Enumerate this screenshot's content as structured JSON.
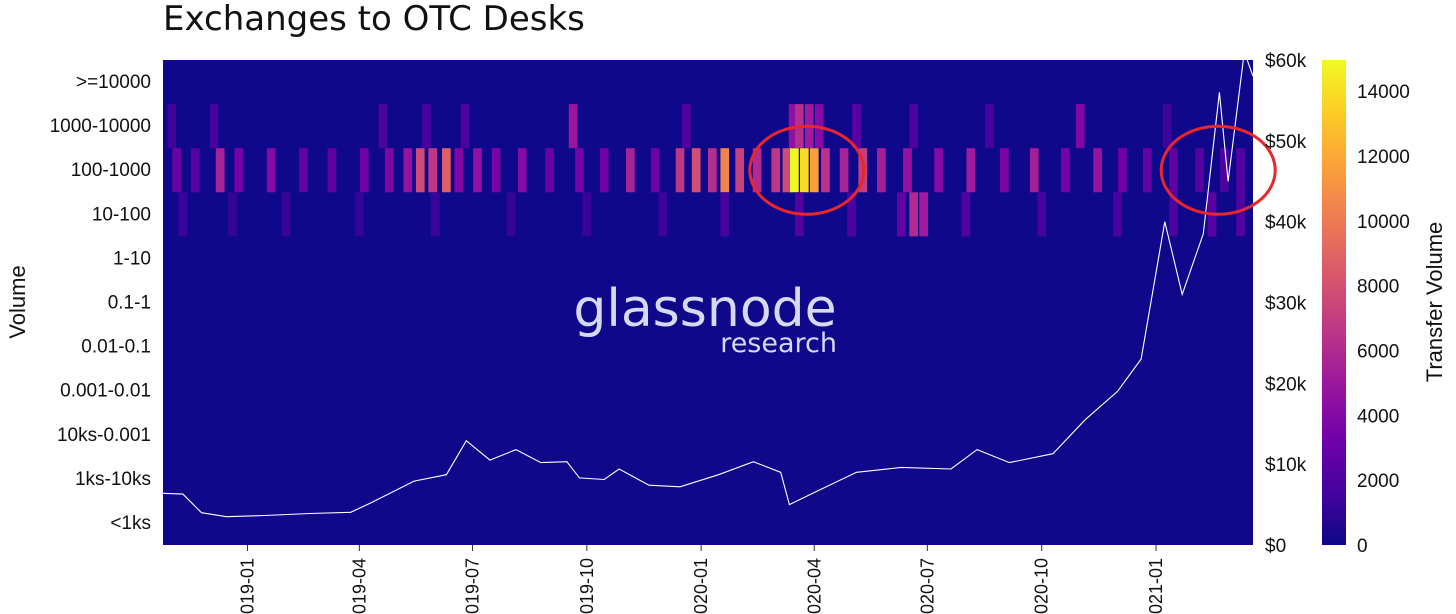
{
  "chart_data": {
    "type": "heatmap",
    "title": "Exchanges to OTC Desks",
    "ylabel": "Volume",
    "y2label": "",
    "colorbar_label": "Transfer Volume",
    "y_categories": [
      "<1ks",
      "1ks-10ks",
      "10ks-0.001",
      "0.001-0.01",
      "0.01-0.1",
      "0.1-1",
      "1-10",
      "10-100",
      "100-1000",
      "1000-10000",
      ">=10000"
    ],
    "x_ticks": [
      "2019-01",
      "2019-04",
      "2019-07",
      "2019-10",
      "2020-01",
      "2020-04",
      "2020-07",
      "2020-10",
      "2021-01"
    ],
    "x_range": [
      "2018-10-25",
      "2021-03-20"
    ],
    "y2_ticks": [
      "$0",
      "$10k",
      "$20k",
      "$30k",
      "$40k",
      "$50k",
      "$60k"
    ],
    "y2_range": [
      0,
      60000
    ],
    "colorbar_ticks": [
      "0",
      "2000",
      "4000",
      "6000",
      "8000",
      "10000",
      "12000",
      "14000"
    ],
    "colorbar_range": [
      0,
      14000
    ],
    "colorscale": [
      "#0d0887",
      "#46039f",
      "#7201a8",
      "#9c179e",
      "#bd3786",
      "#d8576b",
      "#ed7953",
      "#fb9f3a",
      "#fdca26",
      "#f0f921"
    ],
    "rows": {
      "100-1000": [
        {
          "date": "2018-11-05",
          "value": 2800
        },
        {
          "date": "2018-11-20",
          "value": 2200
        },
        {
          "date": "2018-12-10",
          "value": 5200
        },
        {
          "date": "2018-12-25",
          "value": 3200
        },
        {
          "date": "2019-01-20",
          "value": 3800
        },
        {
          "date": "2019-02-15",
          "value": 2600
        },
        {
          "date": "2019-03-10",
          "value": 2400
        },
        {
          "date": "2019-04-05",
          "value": 3000
        },
        {
          "date": "2019-04-25",
          "value": 3600
        },
        {
          "date": "2019-05-10",
          "value": 4400
        },
        {
          "date": "2019-05-20",
          "value": 7200
        },
        {
          "date": "2019-05-30",
          "value": 6200
        },
        {
          "date": "2019-06-10",
          "value": 8200
        },
        {
          "date": "2019-06-20",
          "value": 3600
        },
        {
          "date": "2019-07-05",
          "value": 4200
        },
        {
          "date": "2019-07-20",
          "value": 3400
        },
        {
          "date": "2019-08-10",
          "value": 3800
        },
        {
          "date": "2019-09-01",
          "value": 2800
        },
        {
          "date": "2019-09-25",
          "value": 3200
        },
        {
          "date": "2019-10-15",
          "value": 3000
        },
        {
          "date": "2019-11-05",
          "value": 5200
        },
        {
          "date": "2019-11-25",
          "value": 3000
        },
        {
          "date": "2019-12-15",
          "value": 6200
        },
        {
          "date": "2019-12-28",
          "value": 7400
        },
        {
          "date": "2020-01-10",
          "value": 5800
        },
        {
          "date": "2020-01-20",
          "value": 9800
        },
        {
          "date": "2020-02-01",
          "value": 6800
        },
        {
          "date": "2020-02-15",
          "value": 5600
        },
        {
          "date": "2020-03-01",
          "value": 6200
        },
        {
          "date": "2020-03-10",
          "value": 7200
        },
        {
          "date": "2020-03-16",
          "value": 14000
        },
        {
          "date": "2020-03-24",
          "value": 13000
        },
        {
          "date": "2020-04-01",
          "value": 10800
        },
        {
          "date": "2020-04-10",
          "value": 6000
        },
        {
          "date": "2020-04-25",
          "value": 5200
        },
        {
          "date": "2020-05-10",
          "value": 6600
        },
        {
          "date": "2020-05-25",
          "value": 5000
        },
        {
          "date": "2020-06-15",
          "value": 4400
        },
        {
          "date": "2020-07-10",
          "value": 3800
        },
        {
          "date": "2020-08-05",
          "value": 4800
        },
        {
          "date": "2020-09-01",
          "value": 3400
        },
        {
          "date": "2020-09-25",
          "value": 5000
        },
        {
          "date": "2020-10-20",
          "value": 3200
        },
        {
          "date": "2020-11-15",
          "value": 4400
        },
        {
          "date": "2020-12-05",
          "value": 3000
        },
        {
          "date": "2020-12-25",
          "value": 2600
        },
        {
          "date": "2021-01-15",
          "value": 2400
        },
        {
          "date": "2021-02-05",
          "value": 2200
        },
        {
          "date": "2021-02-25",
          "value": 1800
        },
        {
          "date": "2021-03-10",
          "value": 2000
        }
      ],
      "10-100": [
        {
          "date": "2018-11-10",
          "value": 1200
        },
        {
          "date": "2018-12-20",
          "value": 1000
        },
        {
          "date": "2019-02-01",
          "value": 1200
        },
        {
          "date": "2019-04-01",
          "value": 1100
        },
        {
          "date": "2019-06-01",
          "value": 1200
        },
        {
          "date": "2019-08-01",
          "value": 1100
        },
        {
          "date": "2019-10-01",
          "value": 1200
        },
        {
          "date": "2019-12-01",
          "value": 1300
        },
        {
          "date": "2020-01-20",
          "value": 1600
        },
        {
          "date": "2020-03-20",
          "value": 2000
        },
        {
          "date": "2020-05-01",
          "value": 1800
        },
        {
          "date": "2020-06-10",
          "value": 2600
        },
        {
          "date": "2020-06-20",
          "value": 5600
        },
        {
          "date": "2020-06-28",
          "value": 4800
        },
        {
          "date": "2020-08-01",
          "value": 2000
        },
        {
          "date": "2020-10-01",
          "value": 1600
        },
        {
          "date": "2020-12-01",
          "value": 1700
        },
        {
          "date": "2021-01-15",
          "value": 1800
        },
        {
          "date": "2021-02-15",
          "value": 2200
        },
        {
          "date": "2021-03-10",
          "value": 2000
        }
      ],
      "1000-10000": [
        {
          "date": "2018-11-01",
          "value": 1400
        },
        {
          "date": "2018-12-05",
          "value": 1600
        },
        {
          "date": "2019-04-20",
          "value": 1800
        },
        {
          "date": "2019-05-25",
          "value": 1600
        },
        {
          "date": "2019-06-25",
          "value": 1800
        },
        {
          "date": "2019-09-20",
          "value": 4600
        },
        {
          "date": "2019-12-20",
          "value": 2000
        },
        {
          "date": "2020-03-15",
          "value": 4200
        },
        {
          "date": "2020-03-20",
          "value": 5800
        },
        {
          "date": "2020-03-28",
          "value": 4800
        },
        {
          "date": "2020-04-05",
          "value": 3800
        },
        {
          "date": "2020-05-05",
          "value": 2200
        },
        {
          "date": "2020-06-20",
          "value": 1800
        },
        {
          "date": "2020-08-20",
          "value": 1600
        },
        {
          "date": "2020-11-01",
          "value": 3600
        },
        {
          "date": "2021-01-10",
          "value": 1400
        }
      ]
    },
    "price_series": [
      {
        "date": "2018-10-25",
        "value": 6400
      },
      {
        "date": "2018-11-10",
        "value": 6300
      },
      {
        "date": "2018-11-25",
        "value": 4000
      },
      {
        "date": "2018-12-15",
        "value": 3500
      },
      {
        "date": "2019-01-15",
        "value": 3650
      },
      {
        "date": "2019-02-20",
        "value": 3900
      },
      {
        "date": "2019-03-25",
        "value": 4050
      },
      {
        "date": "2019-04-10",
        "value": 5200
      },
      {
        "date": "2019-05-15",
        "value": 7900
      },
      {
        "date": "2019-06-10",
        "value": 8700
      },
      {
        "date": "2019-06-26",
        "value": 12900
      },
      {
        "date": "2019-07-15",
        "value": 10500
      },
      {
        "date": "2019-08-05",
        "value": 11800
      },
      {
        "date": "2019-08-25",
        "value": 10200
      },
      {
        "date": "2019-09-15",
        "value": 10300
      },
      {
        "date": "2019-09-25",
        "value": 8300
      },
      {
        "date": "2019-10-15",
        "value": 8100
      },
      {
        "date": "2019-10-27",
        "value": 9400
      },
      {
        "date": "2019-11-20",
        "value": 7400
      },
      {
        "date": "2019-12-15",
        "value": 7200
      },
      {
        "date": "2020-01-15",
        "value": 8700
      },
      {
        "date": "2020-02-12",
        "value": 10300
      },
      {
        "date": "2020-03-05",
        "value": 9000
      },
      {
        "date": "2020-03-12",
        "value": 5000
      },
      {
        "date": "2020-04-01",
        "value": 6500
      },
      {
        "date": "2020-05-05",
        "value": 9000
      },
      {
        "date": "2020-06-10",
        "value": 9600
      },
      {
        "date": "2020-07-20",
        "value": 9400
      },
      {
        "date": "2020-08-10",
        "value": 11800
      },
      {
        "date": "2020-09-05",
        "value": 10200
      },
      {
        "date": "2020-10-10",
        "value": 11300
      },
      {
        "date": "2020-11-05",
        "value": 15500
      },
      {
        "date": "2020-12-01",
        "value": 19000
      },
      {
        "date": "2020-12-20",
        "value": 23000
      },
      {
        "date": "2021-01-08",
        "value": 40000
      },
      {
        "date": "2021-01-22",
        "value": 31000
      },
      {
        "date": "2021-02-08",
        "value": 38500
      },
      {
        "date": "2021-02-21",
        "value": 56000
      },
      {
        "date": "2021-02-28",
        "value": 45000
      },
      {
        "date": "2021-03-13",
        "value": 61000
      },
      {
        "date": "2021-03-20",
        "value": 58000
      }
    ],
    "annotations": [
      {
        "type": "ellipse",
        "color": "#e8262b",
        "center_date": "2020-03-26",
        "row": "100-1000"
      },
      {
        "type": "ellipse",
        "color": "#e8262b",
        "center_date": "2021-02-20",
        "row": "100-1000"
      }
    ],
    "watermark": {
      "main": "glassnode",
      "sub": "research"
    },
    "background_color": "#10088a",
    "price_line_color": "#ffffff"
  }
}
